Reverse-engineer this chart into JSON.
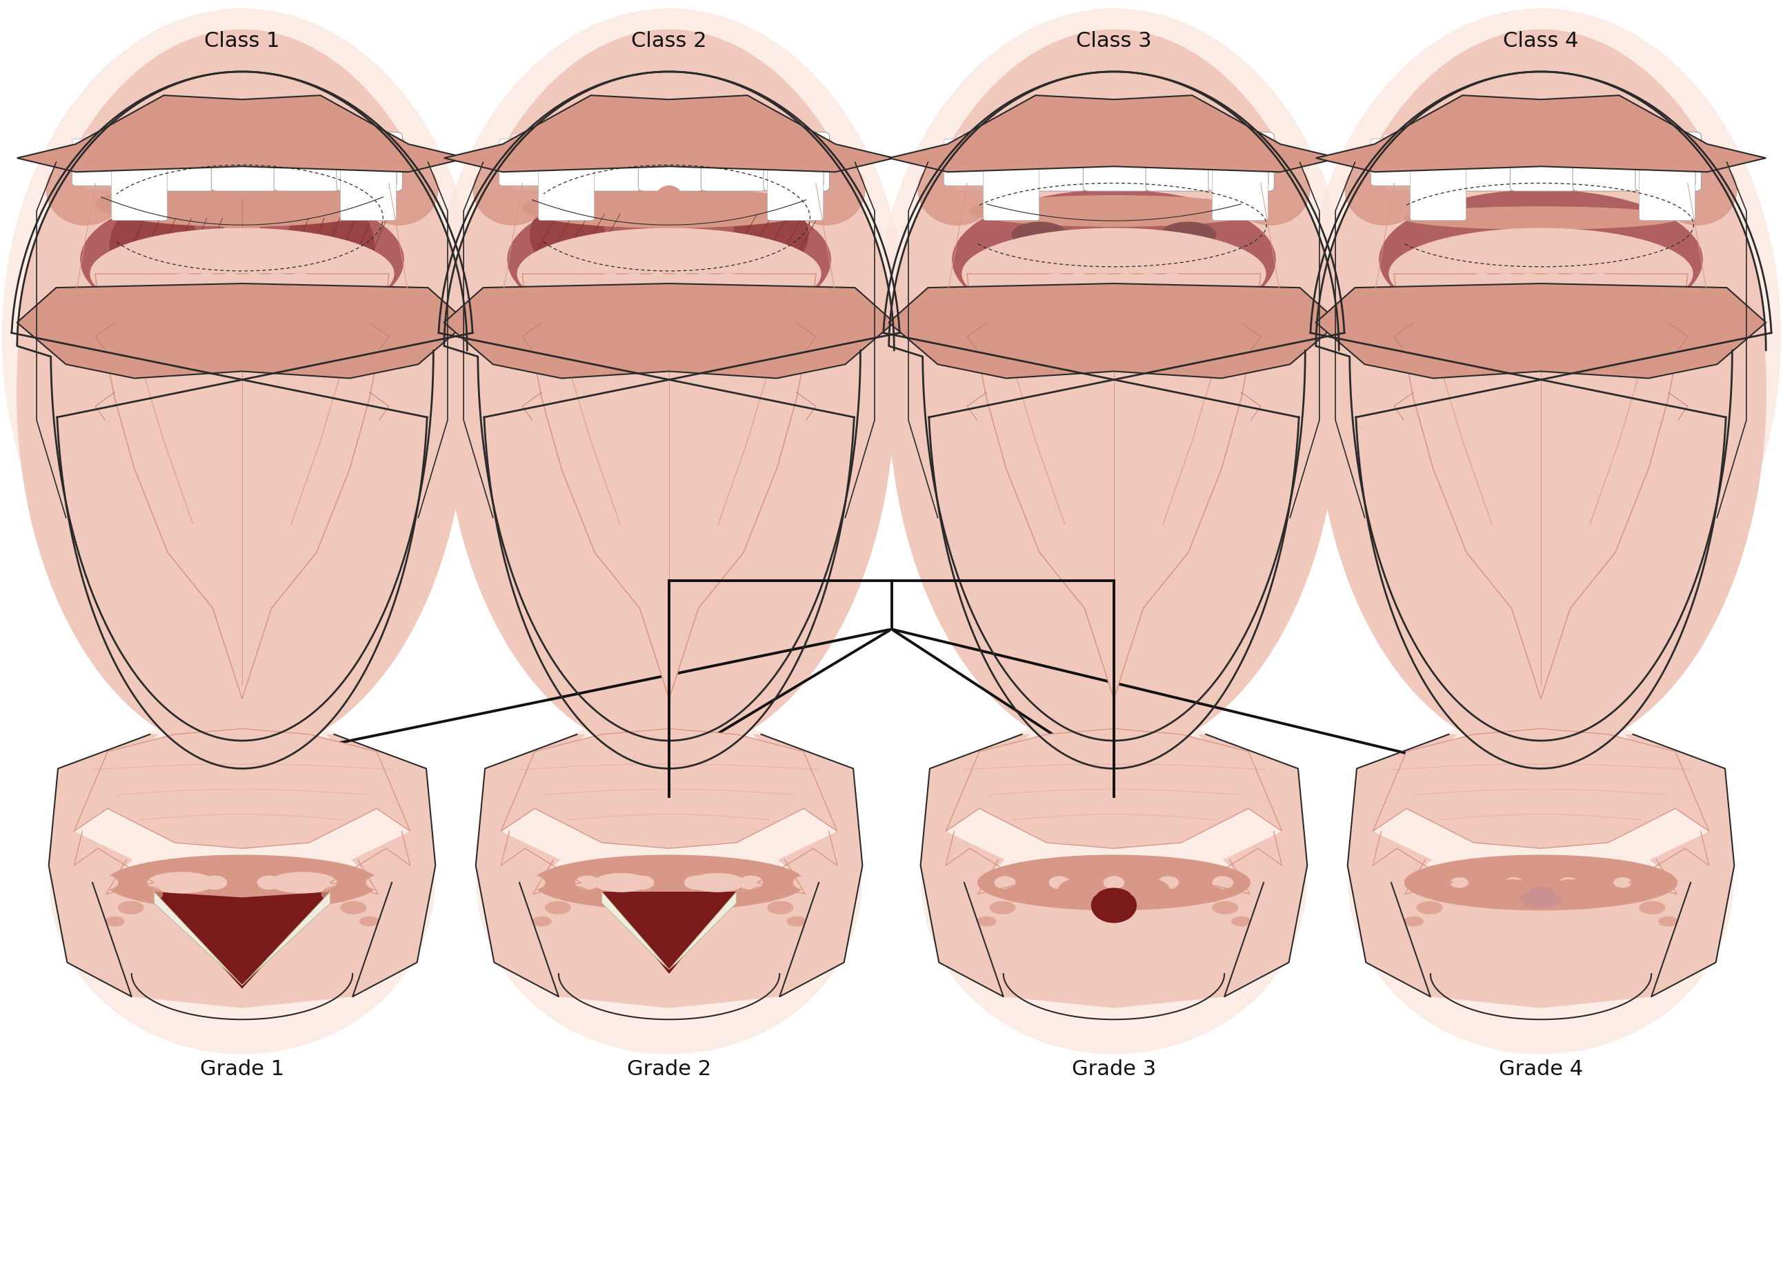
{
  "background_color": "#ffffff",
  "top_labels": [
    "Class 1",
    "Class 2",
    "Class 3",
    "Class 4"
  ],
  "bottom_labels": [
    "Grade 1",
    "Grade 2",
    "Grade 3",
    "Grade 4"
  ],
  "skin_light": "#f0c8bc",
  "skin_lighter": "#f8ddd6",
  "skin_medium": "#d89888",
  "skin_dark": "#b87868",
  "dark_red": "#7a1a1a",
  "outline_color": "#2a2a2a",
  "arrow_color": "#111111",
  "white": "#ffffff",
  "cream": "#f0ece0",
  "pink_inner": "#cc8080",
  "label_fontsize": 22,
  "fig_width": 25.85,
  "fig_height": 18.43
}
